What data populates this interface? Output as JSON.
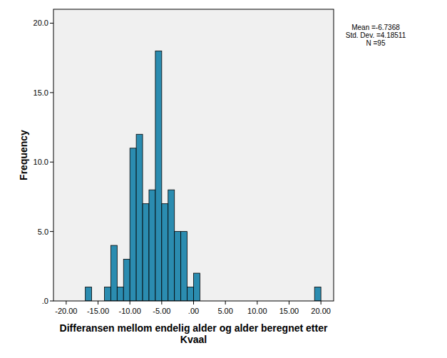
{
  "chart_data": {
    "type": "histogram",
    "xlabel": "Differansen mellom endelig alder og alder beregnet etter Kvaal",
    "ylabel": "Frequency",
    "annotations": [
      "Mean =-6.7368",
      "Std. Dev. =4.18511",
      "N =95"
    ],
    "bins": [
      -17,
      -16,
      -15,
      -14,
      -13,
      -12,
      -11,
      -10,
      -9,
      -8,
      -7,
      -6,
      -5,
      -4,
      -3,
      -2,
      -1,
      0,
      1,
      2,
      3,
      4,
      5,
      6,
      7,
      8,
      9,
      10,
      11,
      12,
      13,
      14,
      15,
      16,
      17,
      18,
      19,
      20
    ],
    "values": [
      1,
      0,
      0,
      1,
      4,
      1,
      3,
      11,
      12,
      7,
      8,
      18,
      7,
      8,
      5,
      5,
      1,
      2,
      0,
      0,
      0,
      0,
      0,
      0,
      0,
      0,
      0,
      0,
      0,
      0,
      0,
      0,
      0,
      0,
      0,
      0,
      1
    ],
    "color": "#2b8cb0",
    "xlim": [
      -22,
      22
    ],
    "ylim": [
      0,
      21
    ],
    "xticks": [
      {
        "value": -20,
        "label": "-20.00"
      },
      {
        "value": -15,
        "label": "-15.00"
      },
      {
        "value": -10,
        "label": "-10.00"
      },
      {
        "value": -5,
        "label": "-5.00"
      },
      {
        "value": 0,
        "label": ".00"
      },
      {
        "value": 5,
        "label": "5.00"
      },
      {
        "value": 10,
        "label": "10.00"
      },
      {
        "value": 15,
        "label": "15.00"
      },
      {
        "value": 20,
        "label": "20.00"
      }
    ],
    "yticks": [
      {
        "value": 0,
        "label": ".0"
      },
      {
        "value": 5,
        "label": "5.0"
      },
      {
        "value": 10,
        "label": "10.0"
      },
      {
        "value": 15,
        "label": "15.0"
      },
      {
        "value": 20,
        "label": "20.0"
      }
    ],
    "grid": false
  }
}
